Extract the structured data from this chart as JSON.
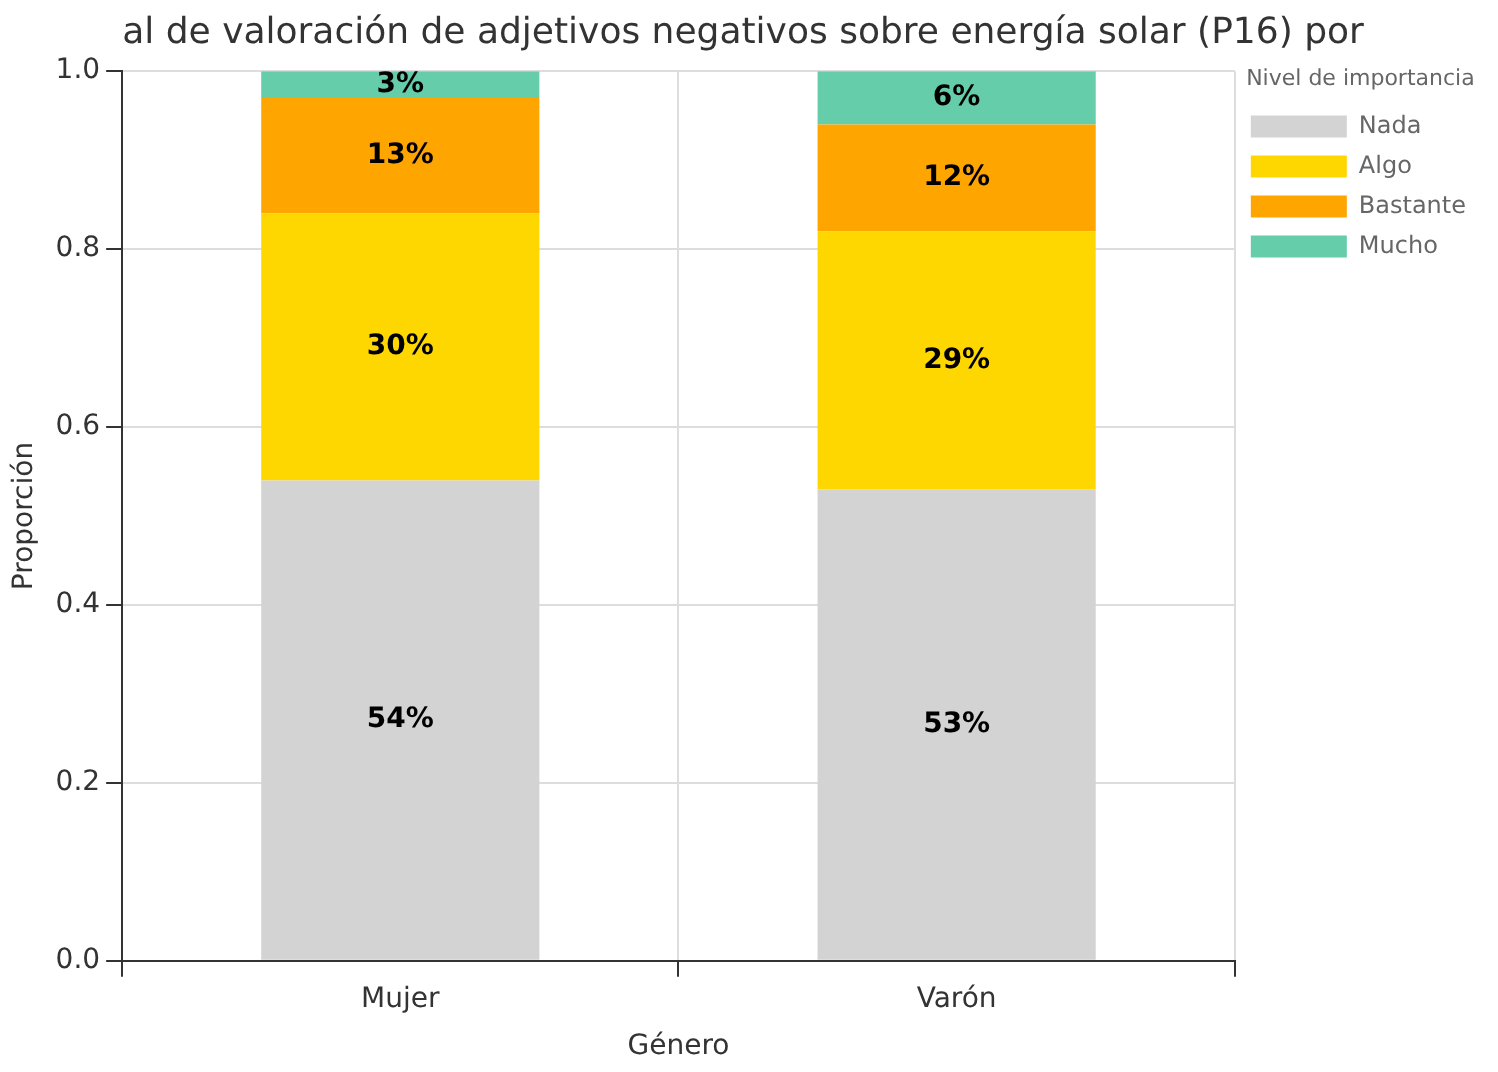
{
  "chart_data": {
    "type": "bar",
    "title": "al de valoración de adjetivos negativos sobre energía solar (P16) por",
    "xlabel": "Género",
    "ylabel": "Proporción",
    "legend_title": "Nivel de importancia",
    "categories": [
      "Mujer",
      "Varón"
    ],
    "stacked": true,
    "series": [
      {
        "name": "Nada",
        "color": "#d3d3d3",
        "values": [
          0.54,
          0.53
        ],
        "value_labels": [
          "54%",
          "53%"
        ]
      },
      {
        "name": "Algo",
        "color": "#ffd700",
        "values": [
          0.3,
          0.29
        ],
        "value_labels": [
          "30%",
          "29%"
        ]
      },
      {
        "name": "Bastante",
        "color": "#ffa500",
        "values": [
          0.13,
          0.12
        ],
        "value_labels": [
          "13%",
          "12%"
        ]
      },
      {
        "name": "Mucho",
        "color": "#66cdaa",
        "values": [
          0.03,
          0.06
        ],
        "value_labels": [
          "3%",
          "6%"
        ]
      }
    ],
    "ylim": [
      0,
      1.0
    ],
    "yticks": [
      {
        "value": 0,
        "label": "0.0"
      },
      {
        "value": 0.2,
        "label": "0.2"
      },
      {
        "value": 0.4,
        "label": "0.4"
      },
      {
        "value": 0.6,
        "label": "0.6"
      },
      {
        "value": 0.8,
        "label": "0.8"
      },
      {
        "value": 1.0,
        "label": "1.0"
      }
    ],
    "grid": true,
    "legend": "top right"
  }
}
